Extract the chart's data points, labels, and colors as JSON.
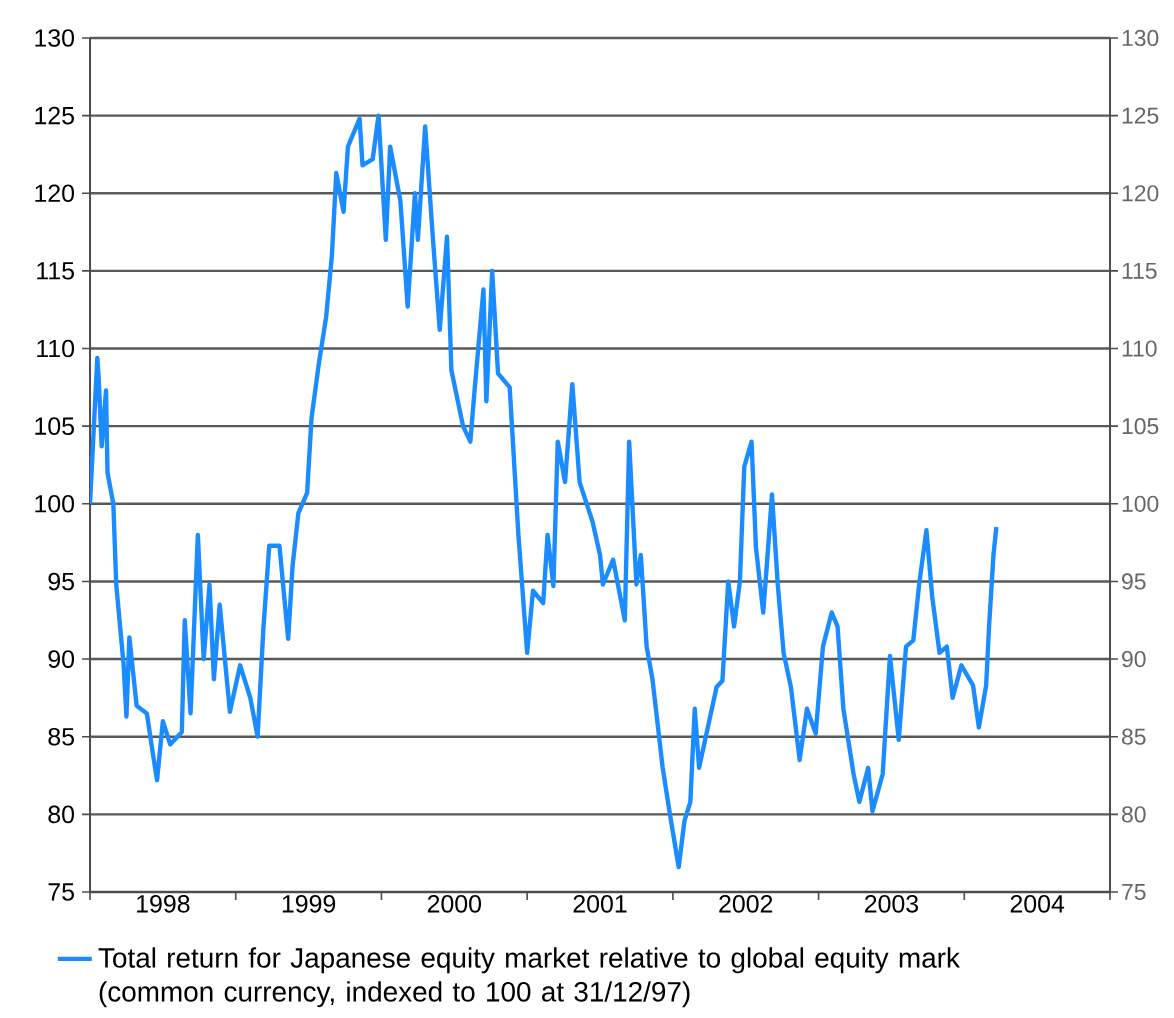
{
  "chart_data": {
    "type": "line",
    "x": [
      1998.0,
      1998.05,
      1998.06,
      1998.08,
      1998.11,
      1998.12,
      1998.16,
      1998.18,
      1998.23,
      1998.25,
      1998.27,
      1998.32,
      1998.39,
      1998.43,
      1998.46,
      1998.5,
      1998.55,
      1998.63,
      1998.65,
      1998.69,
      1998.74,
      1998.78,
      1998.82,
      1998.85,
      1998.89,
      1998.96,
      1999.03,
      1999.1,
      1999.15,
      1999.19,
      1999.23,
      1999.3,
      1999.36,
      1999.39,
      1999.43,
      1999.49,
      1999.52,
      1999.57,
      1999.62,
      1999.66,
      1999.69,
      1999.74,
      1999.77,
      1999.85,
      1999.87,
      1999.94,
      1999.98,
      2000.03,
      2000.06,
      2000.13,
      2000.18,
      2000.23,
      2000.25,
      2000.3,
      2000.35,
      2000.4,
      2000.45,
      2000.48,
      2000.56,
      2000.61,
      2000.64,
      2000.7,
      2000.72,
      2000.76,
      2000.8,
      2000.88,
      2000.94,
      2001.0,
      2001.04,
      2001.11,
      2001.14,
      2001.18,
      2001.21,
      2001.26,
      2001.31,
      2001.36,
      2001.45,
      2001.5,
      2001.52,
      2001.59,
      2001.67,
      2001.7,
      2001.75,
      2001.78,
      2001.82,
      2001.86,
      2001.93,
      2001.98,
      2002.04,
      2002.08,
      2002.12,
      2002.15,
      2002.18,
      2002.24,
      2002.3,
      2002.34,
      2002.38,
      2002.42,
      2002.46,
      2002.49,
      2002.54,
      2002.57,
      2002.62,
      2002.65,
      2002.68,
      2002.72,
      2002.76,
      2002.81,
      2002.87,
      2002.92,
      2002.98,
      2003.03,
      2003.09,
      2003.13,
      2003.17,
      2003.24,
      2003.28,
      2003.34,
      2003.37,
      2003.44,
      2003.49,
      2003.55,
      2003.6,
      2003.65,
      2003.69,
      2003.74,
      2003.78,
      2003.83,
      2003.88,
      2003.92,
      2003.98,
      2004.06,
      2004.1,
      2004.15,
      2004.17,
      2004.2,
      2004.22
    ],
    "series": [
      {
        "name": "Total return for Japanese equity market relative to global equity mark (common currency, indexed to 100 at 31/12/97)",
        "color": "#1a8cff",
        "values": [
          100,
          109.4,
          108,
          103.7,
          107.3,
          102,
          100,
          94.8,
          89.7,
          86.3,
          91.4,
          87,
          86.5,
          84,
          82.2,
          86,
          84.5,
          85.3,
          92.5,
          86.5,
          98,
          90,
          94.8,
          88.7,
          93.5,
          86.6,
          89.6,
          87.5,
          85,
          92,
          97.3,
          97.3,
          91.3,
          96,
          99.4,
          100.7,
          105.5,
          109,
          112,
          116,
          121.3,
          118.8,
          123,
          124.8,
          121.8,
          122.2,
          125,
          117,
          123,
          119.5,
          112.7,
          120,
          117,
          124.3,
          117.5,
          111.2,
          117.2,
          108.6,
          105,
          104,
          107.4,
          113.8,
          106.6,
          115,
          108.4,
          107.5,
          98,
          90.4,
          94.4,
          93.6,
          98,
          94.7,
          104,
          101.4,
          107.7,
          101.4,
          98.8,
          96.7,
          94.8,
          96.4,
          92.5,
          104,
          94.8,
          96.7,
          90.8,
          88.7,
          83,
          80,
          76.6,
          79.6,
          80.8,
          86.8,
          83,
          85.6,
          88.2,
          88.6,
          95,
          92.1,
          95,
          102.4,
          104,
          97.2,
          93,
          96.7,
          100.6,
          94.8,
          90.4,
          88.2,
          83.5,
          86.8,
          85.2,
          90.8,
          93,
          92.1,
          86.8,
          82.6,
          80.8,
          83,
          80.2,
          82.6,
          90.2,
          84.8,
          90.8,
          91.2,
          94.8,
          98.3,
          94,
          90.4,
          90.8,
          87.5,
          89.6,
          88.3,
          85.6,
          88.3,
          92.1,
          96.7,
          98.5
        ]
      }
    ],
    "xlim": [
      1998,
      2005
    ],
    "xticks": [
      {
        "value": 1998,
        "label": null
      },
      {
        "value": 1998.5,
        "label": "1998"
      },
      {
        "value": 1999,
        "label": null
      },
      {
        "value": 1999.5,
        "label": "1999"
      },
      {
        "value": 2000,
        "label": null
      },
      {
        "value": 2000.5,
        "label": "2000"
      },
      {
        "value": 2001,
        "label": null
      },
      {
        "value": 2001.5,
        "label": "2001"
      },
      {
        "value": 2002,
        "label": null
      },
      {
        "value": 2002.5,
        "label": "2002"
      },
      {
        "value": 2003,
        "label": null
      },
      {
        "value": 2003.5,
        "label": "2003"
      },
      {
        "value": 2004,
        "label": null
      },
      {
        "value": 2004.5,
        "label": "2004"
      },
      {
        "value": 2005,
        "label": null
      }
    ],
    "ylim": [
      75,
      130
    ],
    "yticks": [
      75,
      80,
      85,
      90,
      95,
      100,
      105,
      110,
      115,
      120,
      125,
      130
    ],
    "y2lim": [
      75,
      130
    ],
    "y2ticks": [
      75,
      80,
      85,
      90,
      95,
      100,
      105,
      110,
      115,
      120,
      125,
      130
    ],
    "grid": "y",
    "legend": "bottom"
  }
}
